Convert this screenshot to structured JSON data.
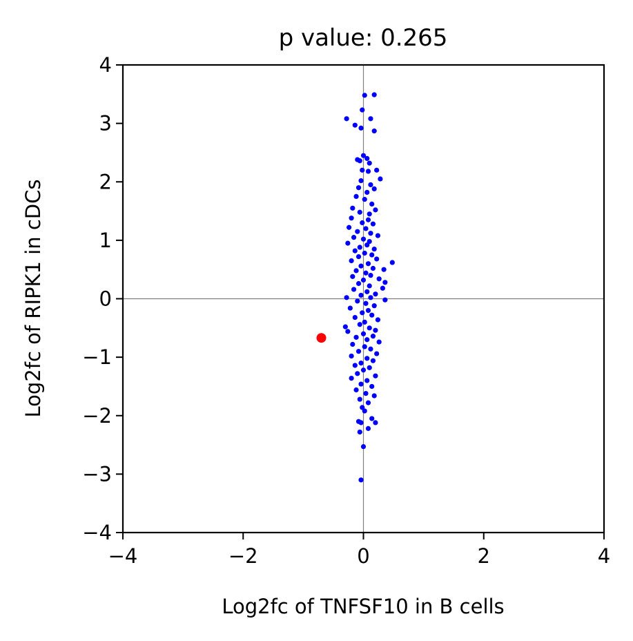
{
  "chart_data": {
    "type": "scatter",
    "title": "p value: 0.265",
    "xlabel": "Log2fc of TNFSF10 in B cells",
    "ylabel": "Log2fc of RIPK1 in cDCs",
    "xlim": [
      -4,
      4
    ],
    "ylim": [
      -4,
      4
    ],
    "xticks": [
      -4,
      -2,
      0,
      2,
      4
    ],
    "yticks": [
      -4,
      -3,
      -2,
      -1,
      0,
      1,
      2,
      3,
      4
    ],
    "xtick_labels": [
      "−4",
      "−2",
      "0",
      "2",
      "4"
    ],
    "ytick_labels": [
      "−4",
      "−3",
      "−2",
      "−1",
      "0",
      "1",
      "2",
      "3",
      "4"
    ],
    "reference_lines": {
      "x": 0,
      "y": 0,
      "color": "#808080"
    },
    "grid": false,
    "series": [
      {
        "color": "#0000ff",
        "marker": "small-dot",
        "points": [
          [
            0.02,
            3.48
          ],
          [
            0.18,
            3.49
          ],
          [
            -0.02,
            3.23
          ],
          [
            0.12,
            3.08
          ],
          [
            -0.28,
            3.08
          ],
          [
            -0.14,
            2.97
          ],
          [
            -0.04,
            2.92
          ],
          [
            0.18,
            2.87
          ],
          [
            0.0,
            2.45
          ],
          [
            0.06,
            2.4
          ],
          [
            -0.1,
            2.38
          ],
          [
            -0.06,
            2.36
          ],
          [
            0.1,
            2.32
          ],
          [
            0.22,
            2.2
          ],
          [
            0.08,
            2.18
          ],
          [
            -0.02,
            2.2
          ],
          [
            0.28,
            2.05
          ],
          [
            -0.04,
            2.02
          ],
          [
            0.12,
            1.95
          ],
          [
            -0.08,
            1.9
          ],
          [
            0.18,
            1.88
          ],
          [
            0.06,
            1.82
          ],
          [
            -0.12,
            1.75
          ],
          [
            0.02,
            1.7
          ],
          [
            0.14,
            1.62
          ],
          [
            -0.18,
            1.55
          ],
          [
            0.2,
            1.52
          ],
          [
            -0.06,
            1.48
          ],
          [
            0.1,
            1.45
          ],
          [
            -0.2,
            1.38
          ],
          [
            0.08,
            1.35
          ],
          [
            -0.02,
            1.3
          ],
          [
            0.16,
            1.28
          ],
          [
            -0.24,
            1.22
          ],
          [
            0.04,
            1.2
          ],
          [
            -0.1,
            1.15
          ],
          [
            0.12,
            1.12
          ],
          [
            0.24,
            1.08
          ],
          [
            -0.16,
            1.05
          ],
          [
            0.0,
            1.02
          ],
          [
            0.1,
            0.98
          ],
          [
            -0.26,
            0.95
          ],
          [
            0.06,
            0.92
          ],
          [
            -0.06,
            0.88
          ],
          [
            0.18,
            0.85
          ],
          [
            -0.14,
            0.82
          ],
          [
            0.02,
            0.78
          ],
          [
            0.14,
            0.75
          ],
          [
            -0.08,
            0.72
          ],
          [
            0.22,
            0.68
          ],
          [
            -0.2,
            0.65
          ],
          [
            0.48,
            0.62
          ],
          [
            0.08,
            0.6
          ],
          [
            -0.04,
            0.56
          ],
          [
            0.16,
            0.52
          ],
          [
            0.34,
            0.5
          ],
          [
            -0.12,
            0.48
          ],
          [
            0.04,
            0.44
          ],
          [
            0.12,
            0.4
          ],
          [
            -0.18,
            0.38
          ],
          [
            0.26,
            0.34
          ],
          [
            0.0,
            0.32
          ],
          [
            0.36,
            0.28
          ],
          [
            -0.08,
            0.26
          ],
          [
            0.1,
            0.22
          ],
          [
            0.32,
            0.18
          ],
          [
            -0.16,
            0.16
          ],
          [
            0.06,
            0.12
          ],
          [
            0.2,
            0.08
          ],
          [
            -0.04,
            0.06
          ],
          [
            -0.28,
            0.02
          ],
          [
            0.12,
            0.02
          ],
          [
            0.36,
            -0.02
          ],
          [
            -0.1,
            -0.04
          ],
          [
            0.04,
            -0.08
          ],
          [
            0.18,
            -0.12
          ],
          [
            -0.22,
            -0.16
          ],
          [
            0.08,
            -0.2
          ],
          [
            -0.02,
            -0.24
          ],
          [
            0.14,
            -0.28
          ],
          [
            -0.14,
            -0.32
          ],
          [
            0.24,
            -0.36
          ],
          [
            0.02,
            -0.4
          ],
          [
            -0.06,
            -0.44
          ],
          [
            -0.3,
            -0.48
          ],
          [
            0.1,
            -0.5
          ],
          [
            0.2,
            -0.54
          ],
          [
            -0.26,
            -0.56
          ],
          [
            0.0,
            -0.6
          ],
          [
            0.16,
            -0.64
          ],
          [
            -0.12,
            -0.66
          ],
          [
            0.06,
            -0.7
          ],
          [
            0.26,
            -0.74
          ],
          [
            -0.18,
            -0.78
          ],
          [
            0.02,
            -0.82
          ],
          [
            0.12,
            -0.86
          ],
          [
            -0.08,
            -0.9
          ],
          [
            0.22,
            -0.94
          ],
          [
            -0.2,
            -0.98
          ],
          [
            0.06,
            -1.02
          ],
          [
            0.16,
            -1.06
          ],
          [
            -0.04,
            -1.1
          ],
          [
            -0.14,
            -1.14
          ],
          [
            0.1,
            -1.18
          ],
          [
            0.0,
            -1.22
          ],
          [
            -0.1,
            -1.28
          ],
          [
            0.2,
            -1.32
          ],
          [
            -0.2,
            -1.36
          ],
          [
            0.06,
            -1.4
          ],
          [
            -0.04,
            -1.46
          ],
          [
            0.14,
            -1.5
          ],
          [
            -0.12,
            -1.56
          ],
          [
            0.04,
            -1.62
          ],
          [
            0.18,
            -1.66
          ],
          [
            -0.06,
            -1.72
          ],
          [
            0.08,
            -1.78
          ],
          [
            -0.02,
            -1.86
          ],
          [
            0.02,
            -1.92
          ],
          [
            -0.08,
            -2.1
          ],
          [
            0.14,
            -2.05
          ],
          [
            -0.04,
            -2.12
          ],
          [
            0.2,
            -2.12
          ],
          [
            -0.06,
            -2.28
          ],
          [
            0.08,
            -2.22
          ],
          [
            0.0,
            -2.53
          ],
          [
            -0.04,
            -3.1
          ]
        ]
      },
      {
        "color": "#ff0000",
        "marker": "large-dot",
        "points": [
          [
            -0.7,
            -0.67
          ]
        ]
      }
    ]
  }
}
